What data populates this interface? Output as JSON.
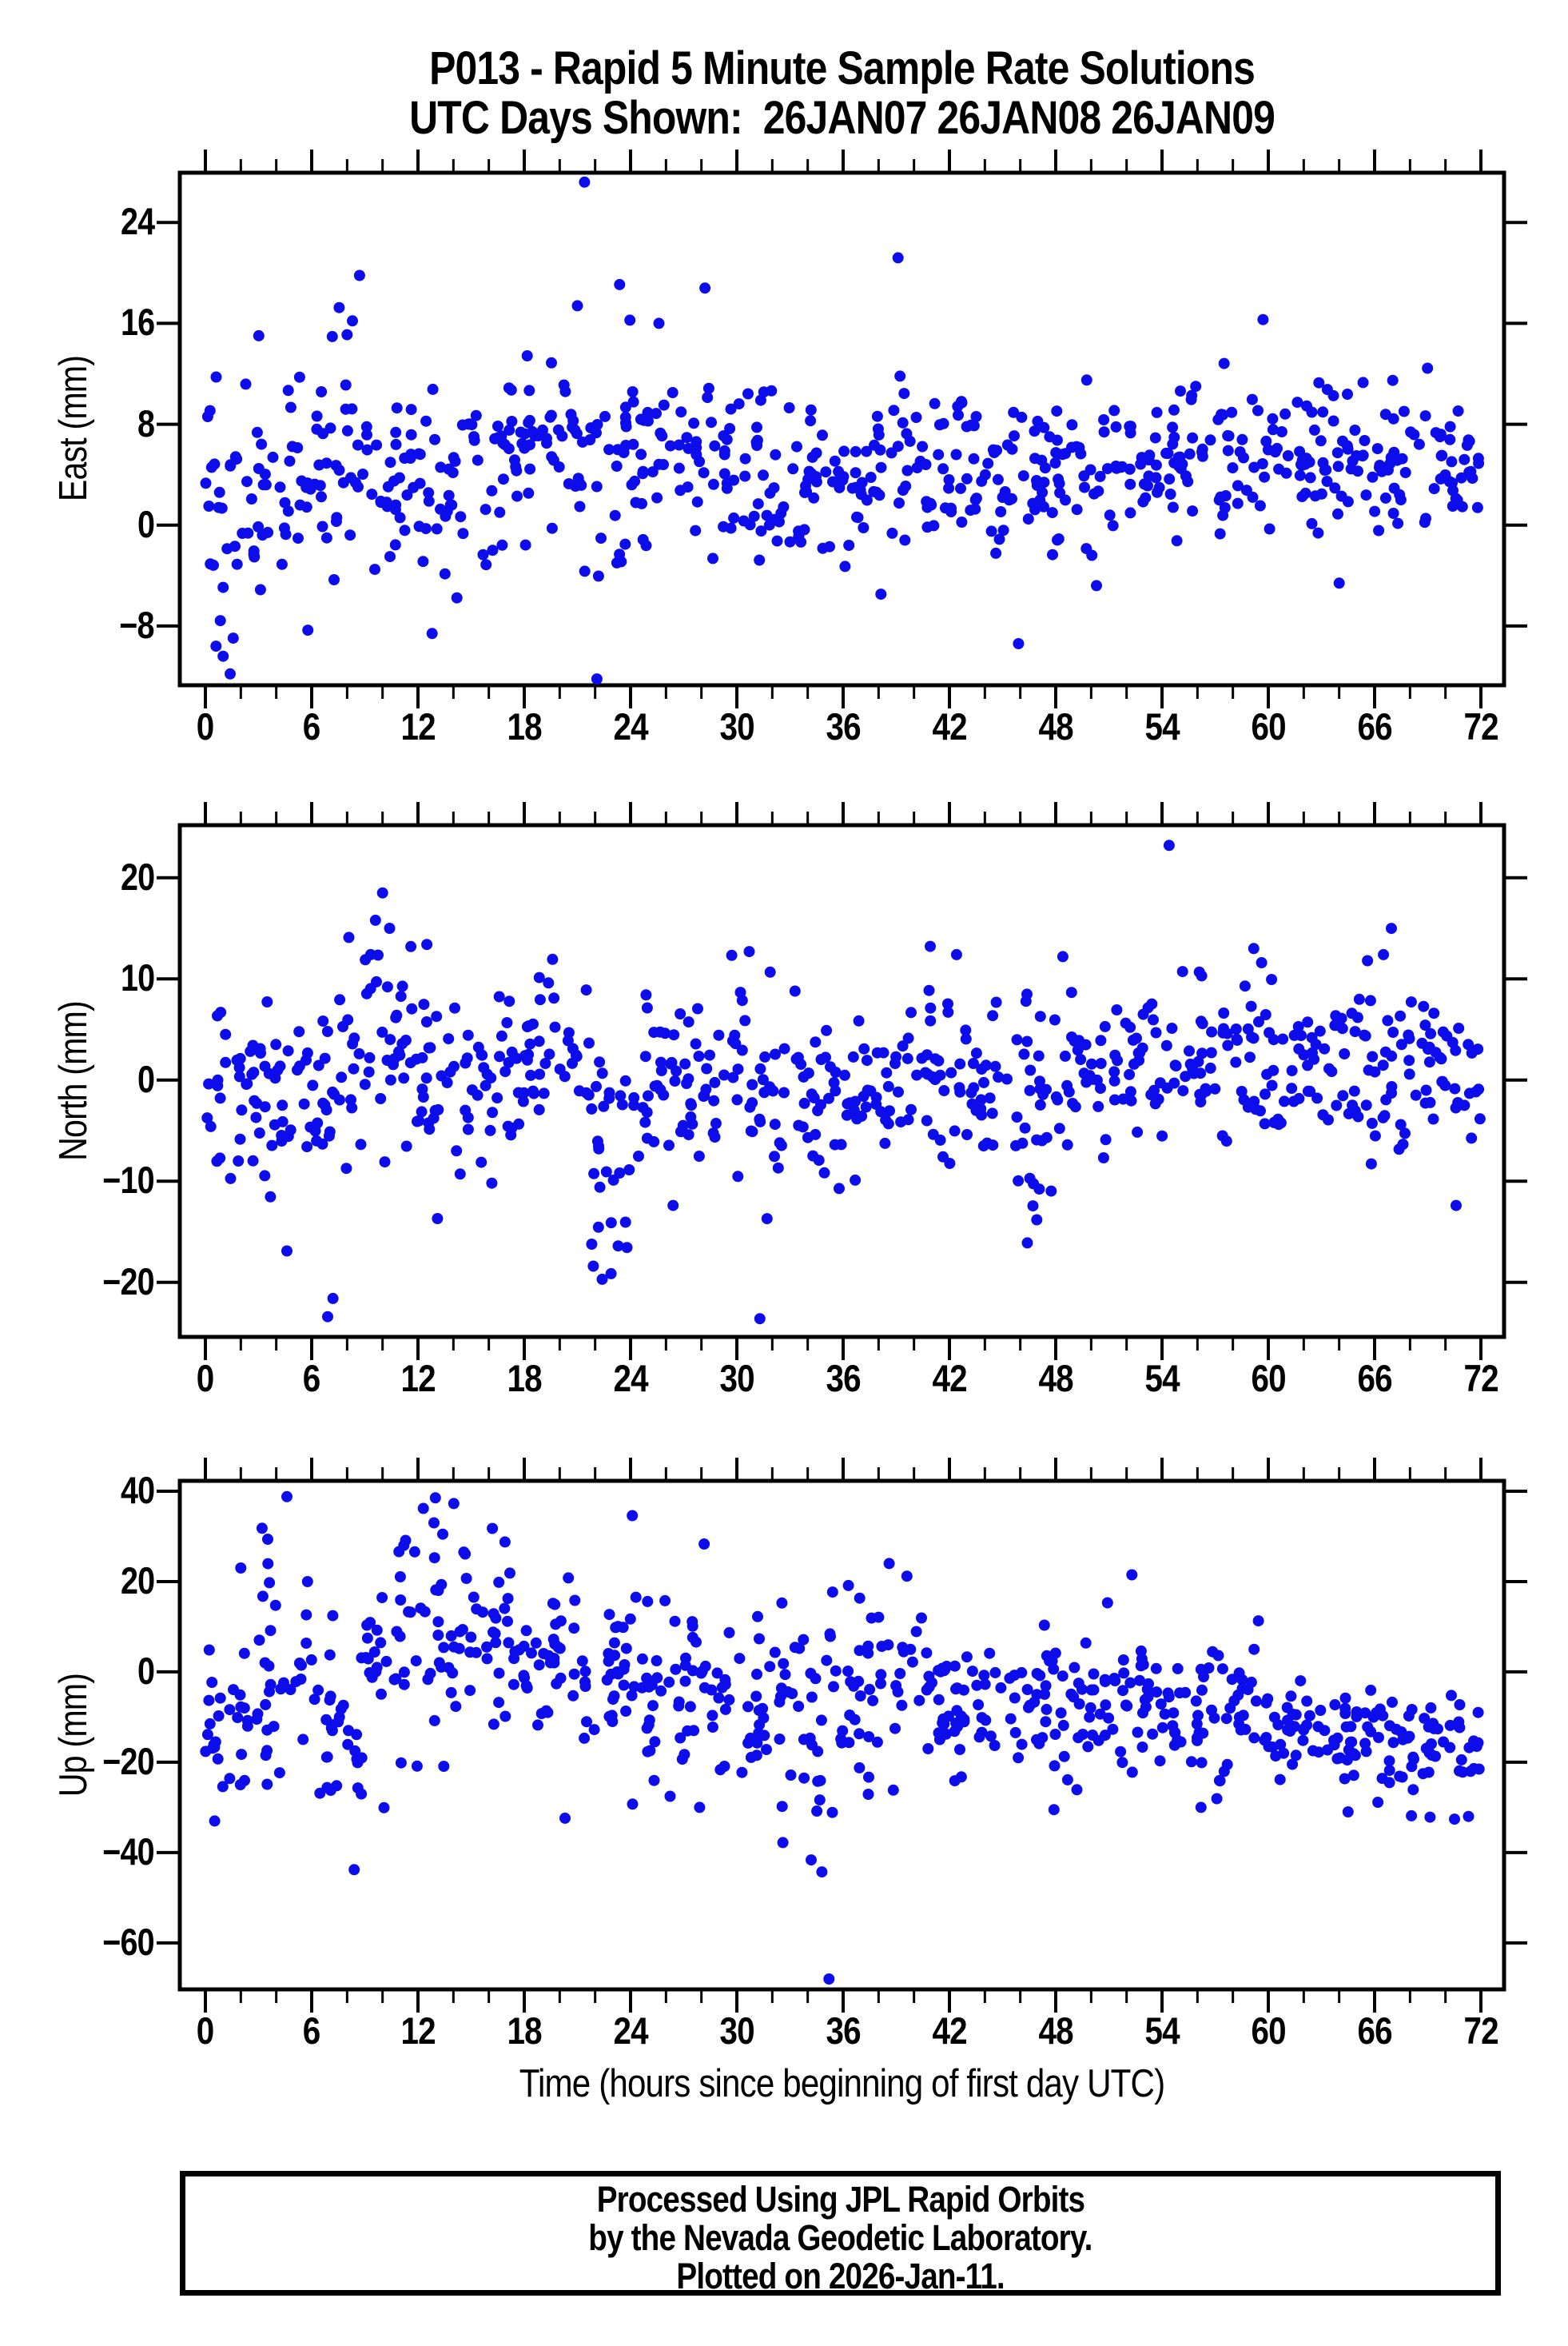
{
  "page": {
    "background": "#ffffff",
    "frame_color": "#000000"
  },
  "title": {
    "line1": "P013 - Rapid 5 Minute Sample Rate Solutions",
    "line2": "UTC Days Shown:  26JAN07 26JAN08 26JAN09"
  },
  "footer": {
    "lines": [
      "Processed Using JPL Rapid Orbits",
      "by the Nevada Geodetic Laboratory.",
      "Plotted on 2026-Jan-11."
    ]
  },
  "chart_data": {
    "type": "scatter",
    "station": "P013",
    "x": {
      "label": "Time (hours since beginning of first day UTC)",
      "lim": [
        0,
        72
      ],
      "major_ticks": [
        0,
        6,
        12,
        18,
        24,
        30,
        36,
        42,
        48,
        54,
        60,
        66,
        72
      ],
      "minor_tick_step": 2
    },
    "marker": {
      "shape": "circle",
      "color": "#0d0deb",
      "radius_px": 7
    },
    "sample_interval_minutes": 5,
    "panels": [
      {
        "name": "East",
        "ylabel": "East (mm)",
        "units": "mm",
        "ylim": [
          -12.7,
          27.95
        ],
        "yticks": [
          -8,
          0,
          8,
          16,
          24
        ],
        "seed": 20070126,
        "point_count_approx": 860,
        "sample_bins": [
          [
            0,
            3,
            0.0,
            4.6,
            32
          ],
          [
            3,
            6,
            3.2,
            4.2,
            30
          ],
          [
            6,
            9,
            4.8,
            4.6,
            30
          ],
          [
            9,
            12,
            4.2,
            4.4,
            30
          ],
          [
            12,
            15,
            1.8,
            3.9,
            30
          ],
          [
            15,
            18,
            4.0,
            3.4,
            30
          ],
          [
            18,
            21,
            6.5,
            3.6,
            34
          ],
          [
            21,
            24,
            4.5,
            5.2,
            30
          ],
          [
            24,
            27,
            5.0,
            3.6,
            30
          ],
          [
            27,
            30,
            4.8,
            3.8,
            30
          ],
          [
            30,
            33,
            3.6,
            3.2,
            30
          ],
          [
            33,
            36,
            3.2,
            3.0,
            30
          ],
          [
            36,
            39,
            4.2,
            3.2,
            30
          ],
          [
            39,
            42,
            5.0,
            3.4,
            30
          ],
          [
            42,
            45,
            4.2,
            3.0,
            30
          ],
          [
            45,
            48,
            4.3,
            3.4,
            30
          ],
          [
            48,
            51,
            4.6,
            3.0,
            30
          ],
          [
            51,
            54,
            5.0,
            2.9,
            30
          ],
          [
            54,
            57,
            5.4,
            3.0,
            30
          ],
          [
            57,
            60,
            5.8,
            3.0,
            30
          ],
          [
            60,
            63,
            5.4,
            3.0,
            30
          ],
          [
            63,
            66,
            5.0,
            3.0,
            30
          ],
          [
            66,
            69,
            5.0,
            2.9,
            30
          ],
          [
            69,
            72,
            4.4,
            2.8,
            30
          ]
        ],
        "outliers": [
          [
            21.4,
            27.2
          ],
          [
            39.1,
            21.2
          ],
          [
            8.7,
            19.8
          ],
          [
            28.2,
            18.8
          ],
          [
            21.0,
            17.4
          ],
          [
            25.6,
            16.0
          ],
          [
            59.7,
            16.3
          ],
          [
            8.3,
            16.2
          ],
          [
            8.0,
            15.1
          ],
          [
            1.4,
            -11.8
          ],
          [
            22.1,
            -12.2
          ],
          [
            45.9,
            -9.4
          ],
          [
            12.8,
            -8.6
          ],
          [
            0.6,
            -9.6
          ],
          [
            1.0,
            -10.4
          ],
          [
            64.0,
            -4.6
          ],
          [
            50.3,
            -4.8
          ]
        ]
      },
      {
        "name": "North",
        "ylabel": "North (mm)",
        "units": "mm",
        "ylim": [
          -25.4,
          25.2
        ],
        "yticks": [
          -20,
          -10,
          0,
          10,
          20
        ],
        "seed": 1377,
        "point_count_approx": 860,
        "sample_bins": [
          [
            0,
            3,
            -1.2,
            4.0,
            30
          ],
          [
            3,
            6,
            -1.5,
            5.0,
            30
          ],
          [
            6,
            9,
            -2.0,
            6.0,
            30
          ],
          [
            9,
            12,
            3.0,
            5.5,
            32
          ],
          [
            12,
            15,
            0.5,
            5.0,
            30
          ],
          [
            15,
            18,
            0.8,
            4.5,
            30
          ],
          [
            18,
            21,
            3.5,
            3.6,
            30
          ],
          [
            21,
            24,
            -4.0,
            6.5,
            30
          ],
          [
            24,
            27,
            -0.5,
            4.0,
            30
          ],
          [
            27,
            30,
            0.5,
            4.0,
            30
          ],
          [
            30,
            33,
            -0.5,
            5.0,
            30
          ],
          [
            33,
            36,
            -2.0,
            4.4,
            30
          ],
          [
            36,
            39,
            -0.2,
            4.0,
            30
          ],
          [
            39,
            42,
            1.2,
            4.6,
            30
          ],
          [
            42,
            45,
            0.0,
            4.6,
            30
          ],
          [
            45,
            48,
            -1.5,
            5.0,
            30
          ],
          [
            48,
            51,
            1.0,
            4.4,
            30
          ],
          [
            51,
            54,
            1.2,
            4.0,
            30
          ],
          [
            54,
            57,
            2.0,
            4.2,
            30
          ],
          [
            57,
            60,
            1.8,
            4.0,
            30
          ],
          [
            60,
            63,
            1.0,
            4.0,
            30
          ],
          [
            63,
            66,
            0.8,
            4.2,
            30
          ],
          [
            66,
            69,
            0.5,
            4.0,
            30
          ],
          [
            69,
            72,
            -0.5,
            4.0,
            30
          ]
        ],
        "outliers": [
          [
            54.4,
            23.2
          ],
          [
            10.0,
            18.5
          ],
          [
            9.6,
            15.8
          ],
          [
            10.4,
            15.0
          ],
          [
            8.1,
            14.1
          ],
          [
            11.6,
            13.2
          ],
          [
            12.5,
            13.4
          ],
          [
            30.7,
            12.7
          ],
          [
            66.5,
            12.4
          ],
          [
            42.4,
            12.4
          ],
          [
            48.4,
            12.2
          ],
          [
            65.6,
            11.8
          ],
          [
            6.9,
            -23.4
          ],
          [
            31.3,
            -23.6
          ],
          [
            7.2,
            -21.6
          ],
          [
            22.4,
            -19.7
          ],
          [
            21.9,
            -18.4
          ],
          [
            4.6,
            -16.9
          ],
          [
            23.3,
            -16.4
          ],
          [
            46.4,
            -16.1
          ],
          [
            13.1,
            -13.7
          ],
          [
            26.4,
            -12.4
          ],
          [
            70.6,
            -12.4
          ]
        ]
      },
      {
        "name": "Up",
        "ylabel": "Up (mm)",
        "units": "mm",
        "ylim": [
          -70.3,
          42.3
        ],
        "yticks": [
          -60,
          -40,
          -20,
          0,
          20,
          40
        ],
        "seed": 90210,
        "point_count_approx": 860,
        "sample_bins": [
          [
            0,
            3,
            -12,
            9,
            30
          ],
          [
            3,
            6,
            0,
            13,
            30
          ],
          [
            6,
            9,
            -7,
            12,
            30
          ],
          [
            9,
            12,
            5,
            11,
            32
          ],
          [
            12,
            15,
            8,
            11,
            32
          ],
          [
            15,
            18,
            4,
            10,
            30
          ],
          [
            18,
            21,
            1,
            10,
            30
          ],
          [
            21,
            24,
            0,
            11,
            30
          ],
          [
            24,
            27,
            -5,
            11,
            30
          ],
          [
            27,
            30,
            -3,
            9,
            30
          ],
          [
            30,
            33,
            -6,
            10,
            30
          ],
          [
            33,
            36,
            -10,
            12,
            30
          ],
          [
            36,
            39,
            -2,
            10,
            30
          ],
          [
            39,
            42,
            -5,
            9,
            30
          ],
          [
            42,
            45,
            -8,
            9,
            30
          ],
          [
            45,
            48,
            -10,
            8,
            30
          ],
          [
            48,
            51,
            -8,
            8,
            30
          ],
          [
            51,
            54,
            -7,
            8,
            30
          ],
          [
            54,
            57,
            -10,
            8,
            30
          ],
          [
            57,
            60,
            -10,
            8,
            30
          ],
          [
            60,
            63,
            -12,
            7,
            30
          ],
          [
            63,
            66,
            -14,
            7,
            30
          ],
          [
            66,
            69,
            -15,
            7,
            30
          ],
          [
            69,
            72,
            -14,
            7,
            30
          ]
        ],
        "outliers": [
          [
            4.6,
            38.8
          ],
          [
            12.3,
            36.2
          ],
          [
            24.1,
            34.6
          ],
          [
            12.9,
            33.0
          ],
          [
            3.2,
            31.8
          ],
          [
            13.4,
            30.5
          ],
          [
            11.2,
            28.0
          ],
          [
            38.6,
            24.0
          ],
          [
            2.0,
            23.0
          ],
          [
            39.6,
            21.2
          ],
          [
            52.3,
            21.5
          ],
          [
            35.2,
            -68.0
          ],
          [
            34.8,
            -44.3
          ],
          [
            8.4,
            -43.8
          ],
          [
            32.6,
            -37.8
          ],
          [
            20.3,
            -32.4
          ],
          [
            71.3,
            -32.0
          ],
          [
            27.9,
            -30.0
          ],
          [
            47.9,
            -30.5
          ],
          [
            56.2,
            -30.0
          ],
          [
            64.5,
            -31.0
          ]
        ]
      }
    ]
  }
}
